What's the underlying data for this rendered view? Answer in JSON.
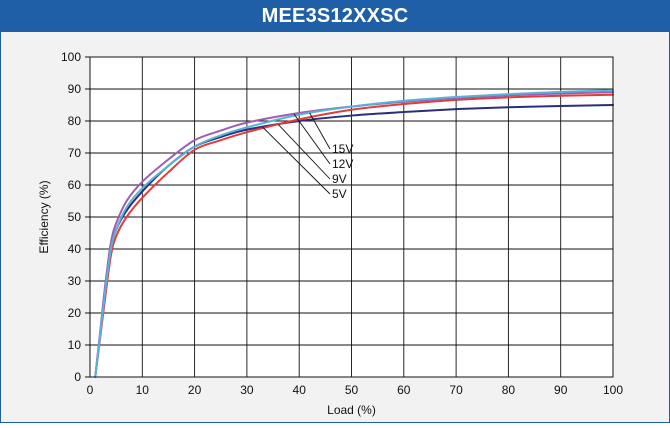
{
  "chart_data": {
    "type": "line",
    "title": "MEE3S12XXSC",
    "xlabel": "Load (%)",
    "ylabel": "Efficiency (%)",
    "xlim": [
      0,
      100
    ],
    "ylim": [
      0,
      100
    ],
    "xticks": [
      0,
      10,
      20,
      30,
      40,
      50,
      60,
      70,
      80,
      90,
      100
    ],
    "yticks": [
      0,
      10,
      20,
      30,
      40,
      50,
      60,
      70,
      80,
      90,
      100
    ],
    "grid": true,
    "legend": "inline annotations near curves",
    "series": [
      {
        "name": "15V",
        "color": "#55b4d6",
        "x": [
          1,
          2,
          3,
          4,
          5,
          7,
          10,
          15,
          20,
          25,
          30,
          40,
          50,
          60,
          70,
          80,
          90,
          100
        ],
        "y": [
          0,
          14,
          28,
          40,
          46,
          53,
          59,
          66,
          72,
          75.5,
          78,
          82,
          84.5,
          86.3,
          87.5,
          88.4,
          89.1,
          89.6
        ]
      },
      {
        "name": "12V",
        "color": "#a05bb5",
        "x": [
          1,
          2,
          3,
          4,
          5,
          7,
          10,
          15,
          20,
          25,
          30,
          40,
          50,
          60,
          70,
          80,
          90,
          100
        ],
        "y": [
          0,
          15,
          30,
          42,
          48,
          55,
          61,
          68,
          74,
          77,
          79.5,
          82.5,
          84.5,
          86,
          87.2,
          88,
          88.6,
          89
        ]
      },
      {
        "name": "9V",
        "color": "#e03c3c",
        "x": [
          1,
          2,
          3,
          4,
          5,
          7,
          10,
          15,
          20,
          25,
          30,
          40,
          50,
          60,
          70,
          80,
          90,
          100
        ],
        "y": [
          0,
          13,
          26,
          38,
          44,
          50,
          56,
          64,
          71,
          74,
          76.5,
          80.5,
          83.5,
          85.3,
          86.6,
          87.4,
          87.9,
          88.2
        ]
      },
      {
        "name": "5V",
        "color": "#2b2f7a",
        "x": [
          1,
          2,
          3,
          4,
          5,
          7,
          10,
          15,
          20,
          25,
          30,
          40,
          50,
          60,
          70,
          80,
          90,
          100
        ],
        "y": [
          0,
          14,
          28,
          40,
          46,
          52,
          58,
          66,
          72,
          75,
          77.3,
          80,
          81.7,
          82.8,
          83.7,
          84.3,
          84.7,
          85
        ]
      }
    ]
  }
}
